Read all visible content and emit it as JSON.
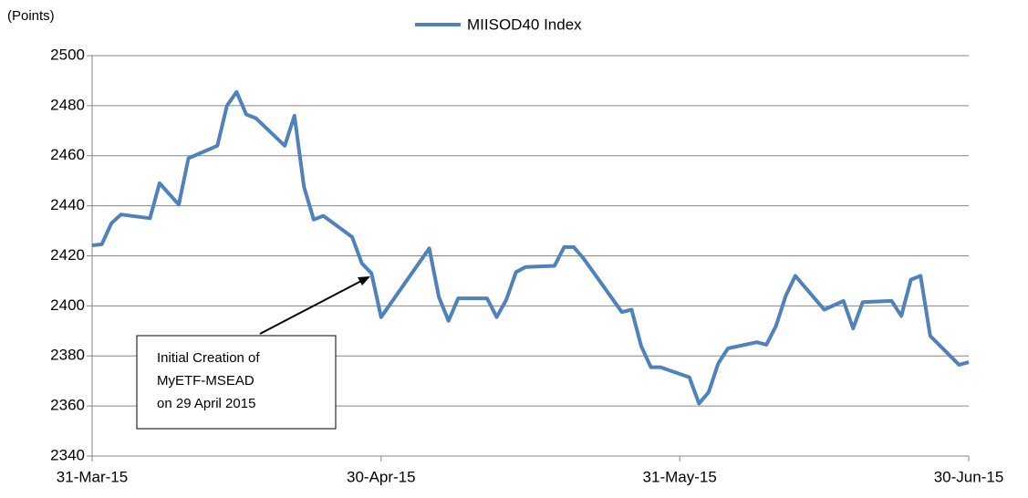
{
  "chart_data": {
    "type": "line",
    "y_label": "(Points)",
    "x": [
      "2015-03-31",
      "2015-04-01",
      "2015-04-02",
      "2015-04-03",
      "2015-04-06",
      "2015-04-07",
      "2015-04-09",
      "2015-04-10",
      "2015-04-13",
      "2015-04-14",
      "2015-04-15",
      "2015-04-16",
      "2015-04-17",
      "2015-04-20",
      "2015-04-21",
      "2015-04-22",
      "2015-04-23",
      "2015-04-24",
      "2015-04-27",
      "2015-04-28",
      "2015-04-29",
      "2015-04-30",
      "2015-05-05",
      "2015-05-06",
      "2015-05-07",
      "2015-05-08",
      "2015-05-11",
      "2015-05-12",
      "2015-05-13",
      "2015-05-14",
      "2015-05-15",
      "2015-05-18",
      "2015-05-19",
      "2015-05-20",
      "2015-05-21",
      "2015-05-25",
      "2015-05-26",
      "2015-05-27",
      "2015-05-28",
      "2015-05-29",
      "2015-06-01",
      "2015-06-02",
      "2015-06-03",
      "2015-06-04",
      "2015-06-05",
      "2015-06-08",
      "2015-06-09",
      "2015-06-10",
      "2015-06-11",
      "2015-06-12",
      "2015-06-15",
      "2015-06-17",
      "2015-06-18",
      "2015-06-19",
      "2015-06-22",
      "2015-06-23",
      "2015-06-24",
      "2015-06-25",
      "2015-06-26",
      "2015-06-29",
      "2015-06-30"
    ],
    "series": [
      {
        "name": "MIISOD40 Index",
        "color": "#4f81bd",
        "values": [
          2424.2,
          2424.6,
          2433,
          2436.5,
          2435,
          2449,
          2440.5,
          2459,
          2464,
          2480,
          2485.5,
          2476.5,
          2475,
          2464,
          2476,
          2447.5,
          2434.5,
          2436,
          2427.5,
          2417,
          2413,
          2395.5,
          2423,
          2403.5,
          2394,
          2403,
          2403,
          2395.5,
          2402.5,
          2413.5,
          2415.5,
          2416,
          2423.5,
          2423.5,
          2419,
          2397.5,
          2398.5,
          2384,
          2375.5,
          2375.5,
          2371.5,
          2361,
          2365.5,
          2377,
          2383,
          2385.5,
          2384.5,
          2392,
          2404,
          2412,
          2398.5,
          2402,
          2391,
          2401.5,
          2402,
          2396,
          2410.5,
          2412,
          2388,
          2376.5,
          2377.5
        ]
      }
    ],
    "xlim": [
      "2015-03-31",
      "2015-06-30"
    ],
    "xticks": [
      {
        "value": "2015-03-31",
        "label": "31-Mar-15"
      },
      {
        "value": "2015-04-30",
        "label": "30-Apr-15"
      },
      {
        "value": "2015-05-31",
        "label": "31-May-15"
      },
      {
        "value": "2015-06-30",
        "label": "30-Jun-15"
      }
    ],
    "ylim": [
      2340,
      2500
    ],
    "yticks": [
      2340,
      2360,
      2380,
      2400,
      2420,
      2440,
      2460,
      2480,
      2500
    ],
    "grid": true,
    "legend": "top",
    "annotation": {
      "lines": [
        "Initial Creation of",
        "MyETF-MSEAD",
        "on 29 April 2015"
      ]
    }
  }
}
